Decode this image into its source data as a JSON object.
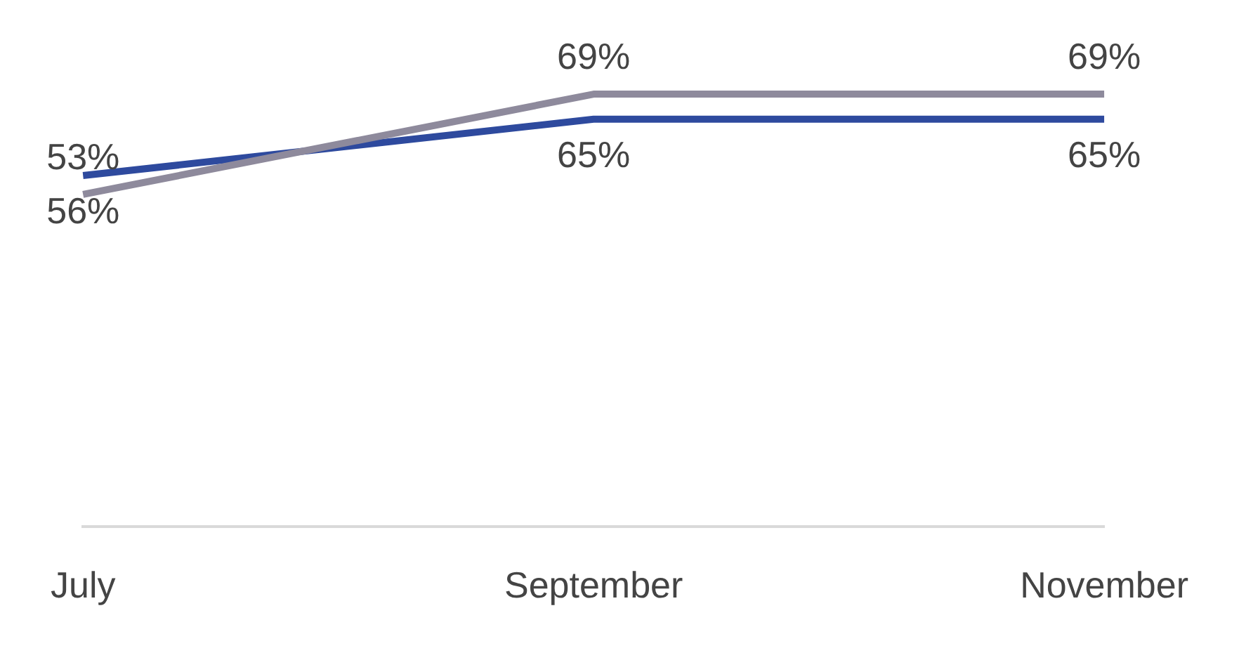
{
  "chart_data": {
    "type": "line",
    "categories": [
      "July",
      "September",
      "November"
    ],
    "series": [
      {
        "color": "#8e8a9c",
        "values": [
          53,
          69,
          69
        ],
        "value_labels": [
          "53%",
          "69%",
          "69%"
        ]
      },
      {
        "color": "#2e4a9e",
        "values": [
          56,
          65,
          65
        ],
        "value_labels": [
          "56%",
          "65%",
          "65%"
        ]
      }
    ],
    "tick_labels": "x",
    "grid": false,
    "legend": false,
    "marker": "none",
    "line_style": "solid"
  }
}
